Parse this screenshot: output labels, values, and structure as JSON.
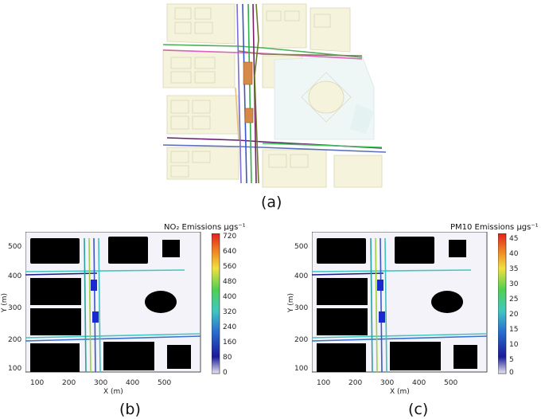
{
  "panels": {
    "a": {
      "label": "(a)"
    },
    "b": {
      "label": "(b)",
      "title": "NO₂ Emissions µgs⁻¹",
      "xlabel": "X (m)",
      "ylabel": "Y (m)",
      "xticks": [
        "100",
        "200",
        "300",
        "400",
        "500"
      ],
      "yticks": [
        "500",
        "400",
        "300",
        "200",
        "100"
      ],
      "colorbar_ticks": [
        "720",
        "640",
        "560",
        "480",
        "400",
        "320",
        "240",
        "160",
        "80",
        "0"
      ]
    },
    "c": {
      "label": "(c)",
      "title": "PM10 Emissions µgs⁻¹",
      "xlabel": "X (m)",
      "ylabel": "Y (m)",
      "xticks": [
        "100",
        "200",
        "300",
        "400",
        "500"
      ],
      "yticks": [
        "500",
        "400",
        "300",
        "200",
        "100"
      ],
      "colorbar_ticks": [
        "45",
        "40",
        "35",
        "30",
        "25",
        "20",
        "15",
        "10",
        "5",
        "0"
      ]
    }
  },
  "colors": {
    "building_fill": "#f5f3dc",
    "building_stroke": "#d9d6b4",
    "plot_bg": "#f3f3f9",
    "obstacle": "#000000",
    "parking": "#d68a4a"
  }
}
